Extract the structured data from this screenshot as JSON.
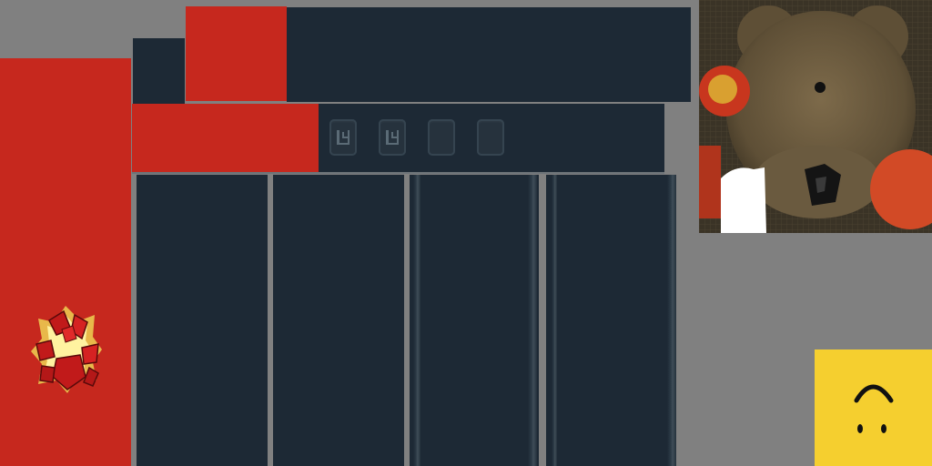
{
  "colors": {
    "background": "#808080",
    "navy": "#1d2935",
    "red": "#c6281e",
    "yellow": "#f5cf2f"
  },
  "icons": {
    "fire": "fire-icon",
    "smiley": "smiley-face-icon",
    "bear": "bear-face-texture"
  },
  "buttons": [
    {
      "name": "slot-button-1",
      "glyph": true
    },
    {
      "name": "slot-button-2",
      "glyph": true
    },
    {
      "name": "slot-button-3",
      "glyph": false
    },
    {
      "name": "slot-button-4",
      "glyph": false
    }
  ]
}
